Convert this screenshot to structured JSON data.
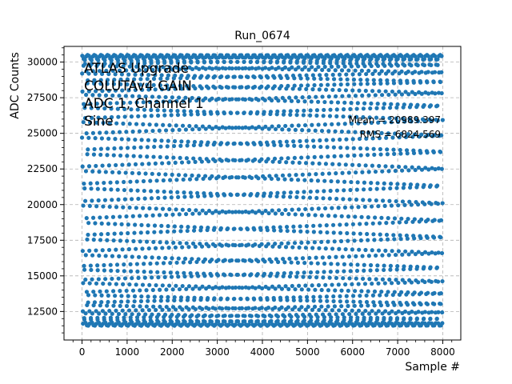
{
  "chart_data": {
    "type": "scatter",
    "title": "Run_0674",
    "xlabel": "Sample #",
    "ylabel": "ADC Counts",
    "xlim": [
      -400,
      8400
    ],
    "ylim": [
      10500,
      31100
    ],
    "xticks": [
      0,
      1000,
      2000,
      3000,
      4000,
      5000,
      6000,
      7000,
      8000
    ],
    "yticks": [
      12500,
      15000,
      17500,
      20000,
      22500,
      25000,
      27500,
      30000
    ],
    "grid": true,
    "marker_color": "#1f77b4",
    "signal": {
      "shape": "sine",
      "n_samples": 8000,
      "min": 11500,
      "max": 30500,
      "mean": 20989.397,
      "rms": 6824.569
    },
    "annotations": {
      "lines": [
        "ATLAS Upgrade",
        "COLUTAv4 GAIN",
        "ADC 1, Channel 1",
        "Sine"
      ],
      "mean_text": "Mean = 20989.397",
      "rms_text": "RMS = 6824.569"
    }
  }
}
